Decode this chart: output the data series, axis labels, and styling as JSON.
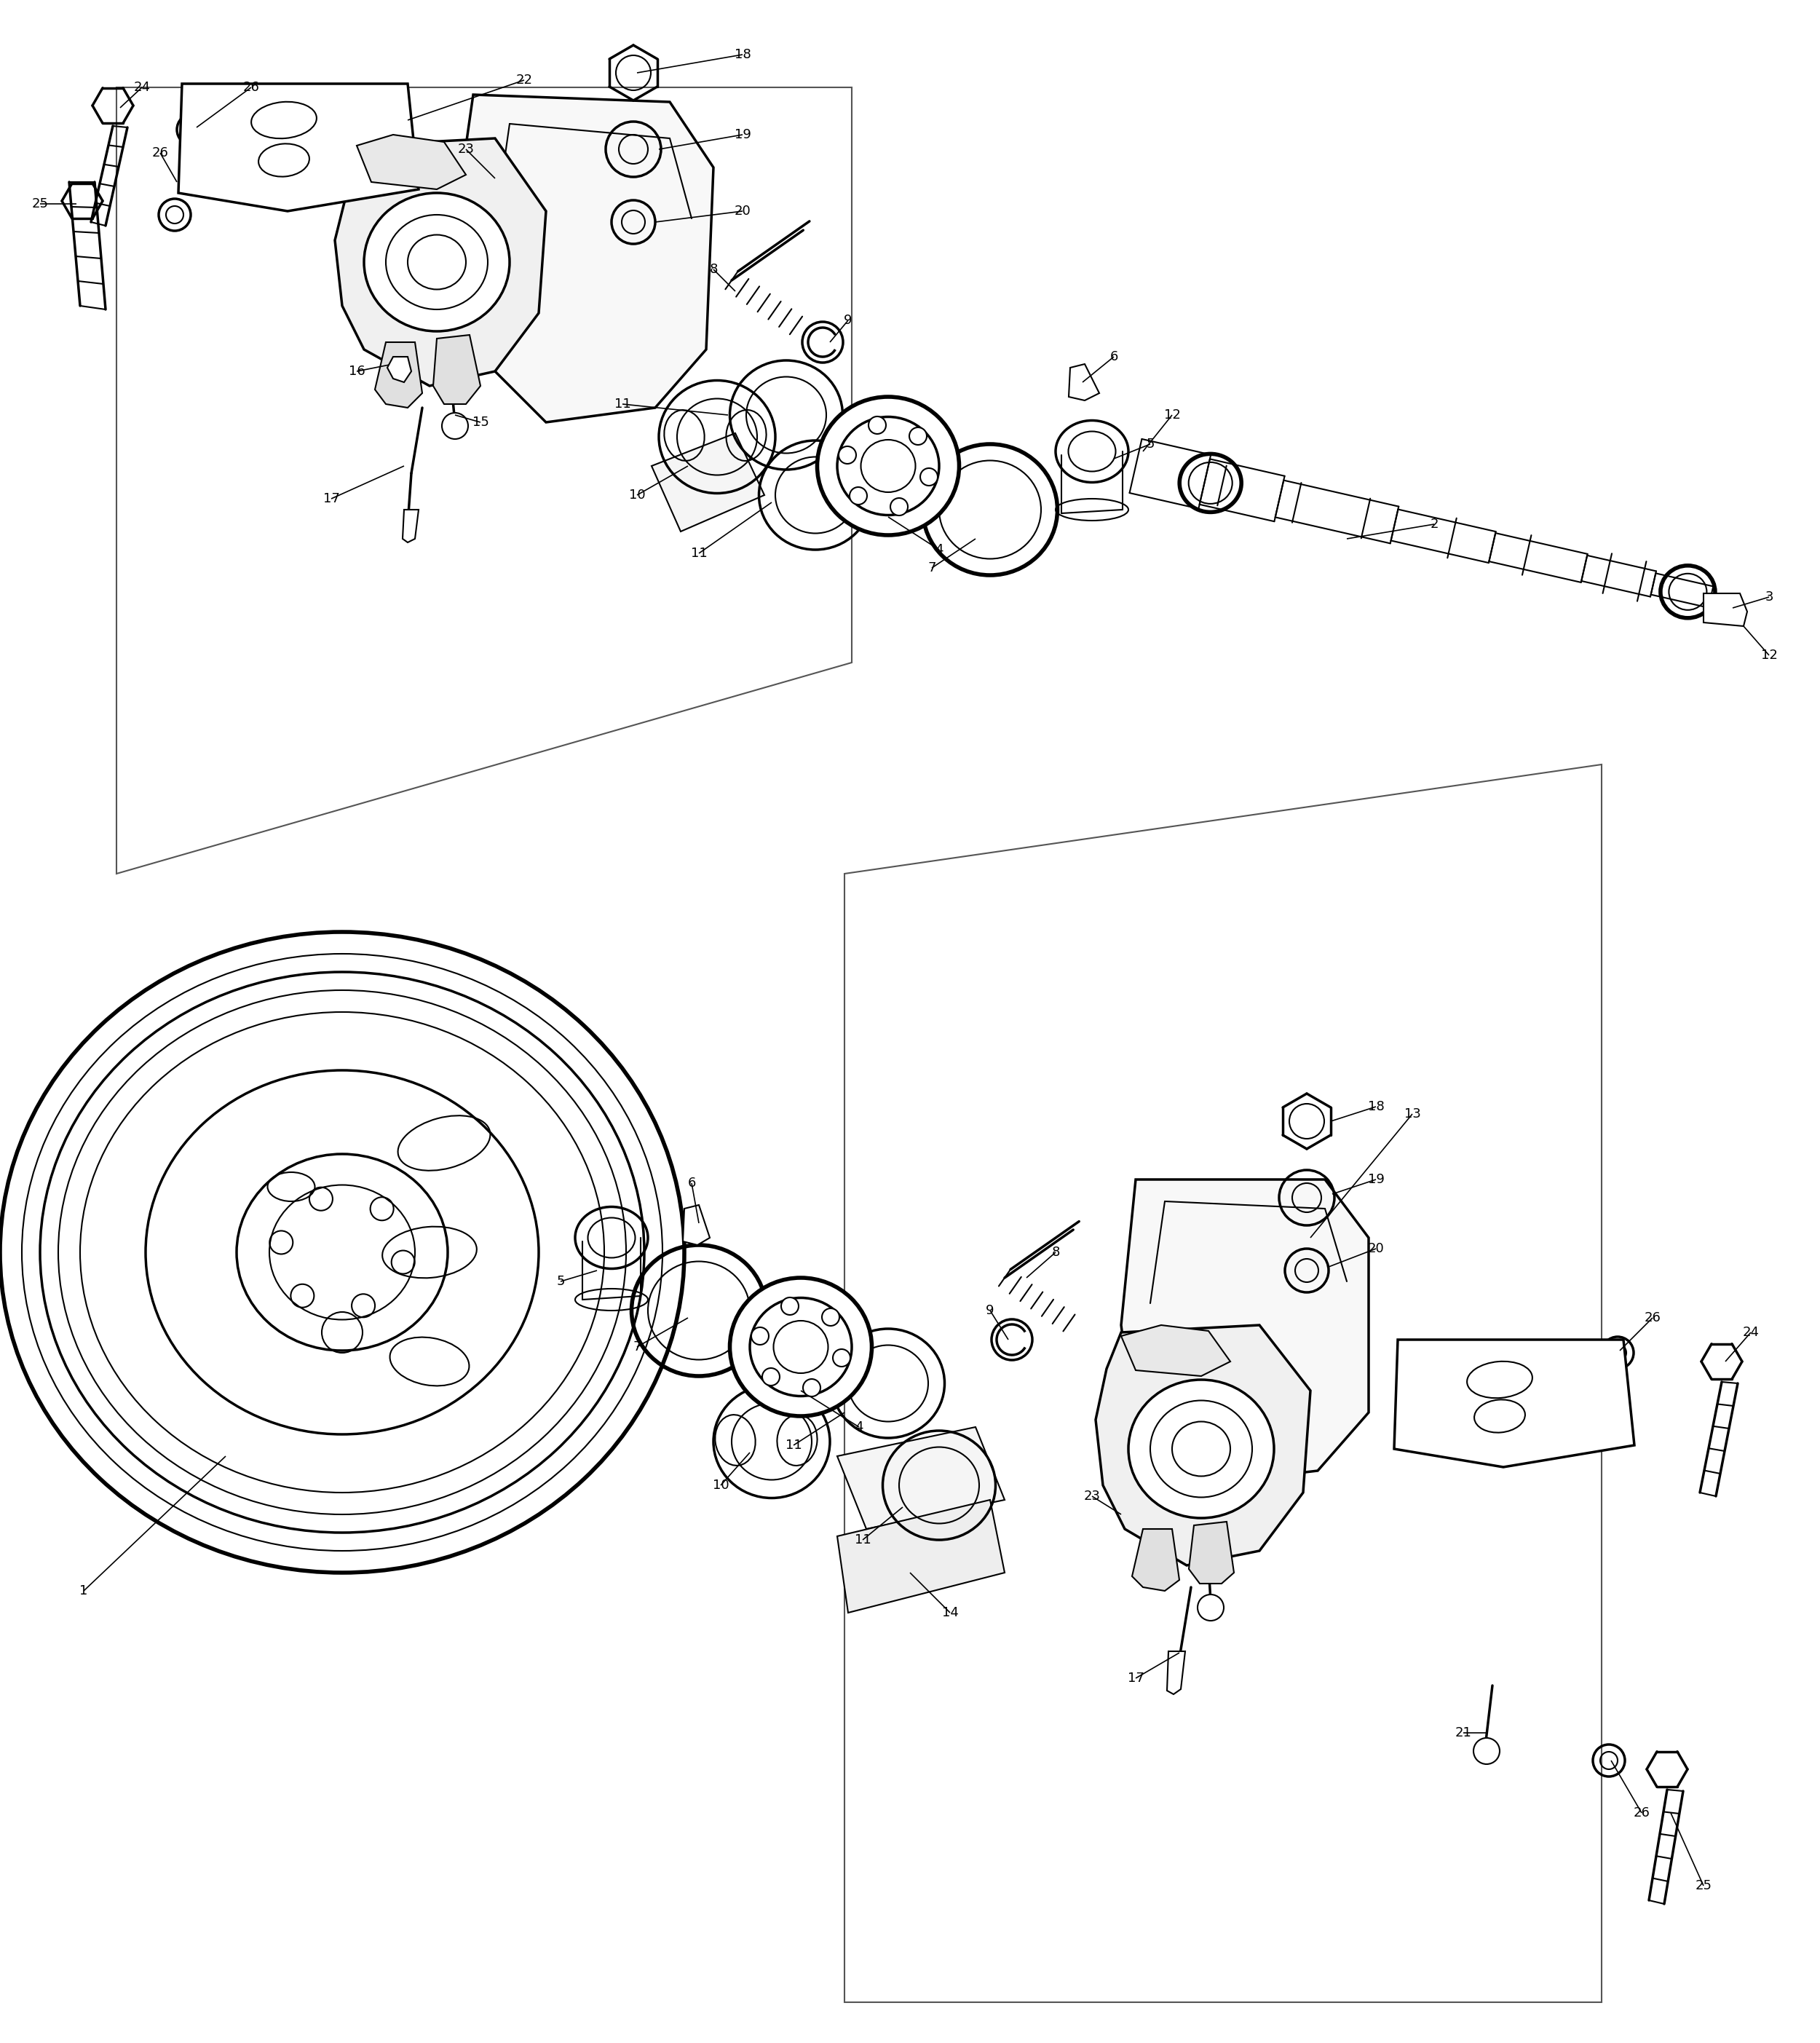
{
  "bg_color": "#ffffff",
  "line_color": "#000000",
  "fig_width": 25.0,
  "fig_height": 28.06,
  "font_size": 13
}
